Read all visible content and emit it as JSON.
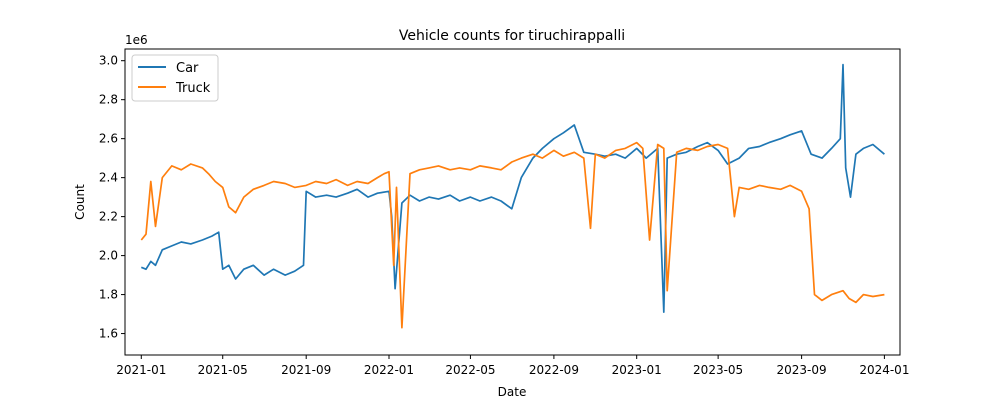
{
  "chart_data": {
    "type": "line",
    "title": "Vehicle counts for tiruchirappalli",
    "xlabel": "Date",
    "ylabel": "Count",
    "y_offset_label": "1e6",
    "y_scale_factor": 1000000,
    "xlim": [
      "2020-12-08",
      "2024-01-24"
    ],
    "ylim": [
      1.49,
      3.06
    ],
    "x_ticks": [
      "2021-01",
      "2021-05",
      "2021-09",
      "2022-01",
      "2022-05",
      "2022-09",
      "2023-01",
      "2023-05",
      "2023-09",
      "2024-01"
    ],
    "y_ticks": [
      "1.6",
      "1.8",
      "2.0",
      "2.2",
      "2.4",
      "2.6",
      "2.8",
      "3.0"
    ],
    "y_tick_values": [
      1.6,
      1.8,
      2.0,
      2.2,
      2.4,
      2.6,
      2.8,
      3.0
    ],
    "grid": false,
    "legend_position": "top-left",
    "series": [
      {
        "name": "Car",
        "color": "#1f77b4",
        "x": [
          "2021-01-01",
          "2021-01-08",
          "2021-01-15",
          "2021-01-22",
          "2021-02-01",
          "2021-02-15",
          "2021-03-01",
          "2021-03-15",
          "2021-04-01",
          "2021-04-15",
          "2021-04-25",
          "2021-05-01",
          "2021-05-10",
          "2021-05-20",
          "2021-06-01",
          "2021-06-15",
          "2021-07-01",
          "2021-07-15",
          "2021-08-01",
          "2021-08-15",
          "2021-08-28",
          "2021-09-01",
          "2021-09-15",
          "2021-10-01",
          "2021-10-15",
          "2021-11-01",
          "2021-11-15",
          "2021-12-01",
          "2021-12-15",
          "2022-01-01",
          "2022-01-05",
          "2022-01-10",
          "2022-01-20",
          "2022-02-01",
          "2022-02-15",
          "2022-03-01",
          "2022-03-15",
          "2022-04-01",
          "2022-04-15",
          "2022-05-01",
          "2022-05-15",
          "2022-06-01",
          "2022-06-15",
          "2022-07-01",
          "2022-07-15",
          "2022-08-01",
          "2022-08-15",
          "2022-09-01",
          "2022-09-15",
          "2022-10-01",
          "2022-10-15",
          "2022-11-01",
          "2022-11-15",
          "2022-12-01",
          "2022-12-15",
          "2023-01-01",
          "2023-01-15",
          "2023-02-01",
          "2023-02-10",
          "2023-02-15",
          "2023-03-01",
          "2023-03-15",
          "2023-04-01",
          "2023-04-15",
          "2023-05-01",
          "2023-05-15",
          "2023-06-01",
          "2023-06-15",
          "2023-07-01",
          "2023-07-15",
          "2023-08-01",
          "2023-08-15",
          "2023-09-01",
          "2023-09-15",
          "2023-10-01",
          "2023-10-15",
          "2023-10-28",
          "2023-11-01",
          "2023-11-05",
          "2023-11-12",
          "2023-11-20",
          "2023-12-01",
          "2023-12-15",
          "2024-01-01"
        ],
        "values": [
          1.94,
          1.93,
          1.97,
          1.95,
          2.03,
          2.05,
          2.07,
          2.06,
          2.08,
          2.1,
          2.12,
          1.93,
          1.95,
          1.88,
          1.93,
          1.95,
          1.9,
          1.93,
          1.9,
          1.92,
          1.95,
          2.33,
          2.3,
          2.31,
          2.3,
          2.32,
          2.34,
          2.3,
          2.32,
          2.33,
          2.2,
          1.83,
          2.27,
          2.31,
          2.28,
          2.3,
          2.29,
          2.31,
          2.28,
          2.3,
          2.28,
          2.3,
          2.28,
          2.24,
          2.4,
          2.5,
          2.55,
          2.6,
          2.63,
          2.67,
          2.53,
          2.52,
          2.51,
          2.52,
          2.5,
          2.55,
          2.5,
          2.55,
          1.71,
          2.5,
          2.52,
          2.53,
          2.56,
          2.58,
          2.54,
          2.47,
          2.5,
          2.55,
          2.56,
          2.58,
          2.6,
          2.62,
          2.64,
          2.52,
          2.5,
          2.55,
          2.6,
          2.98,
          2.45,
          2.3,
          2.52,
          2.55,
          2.57,
          2.52
        ]
      },
      {
        "name": "Truck",
        "color": "#ff7f0e",
        "x": [
          "2021-01-01",
          "2021-01-08",
          "2021-01-15",
          "2021-01-22",
          "2021-02-01",
          "2021-02-15",
          "2021-03-01",
          "2021-03-15",
          "2021-04-01",
          "2021-04-10",
          "2021-04-20",
          "2021-05-01",
          "2021-05-10",
          "2021-05-20",
          "2021-06-01",
          "2021-06-15",
          "2021-07-01",
          "2021-07-15",
          "2021-08-01",
          "2021-08-15",
          "2021-09-01",
          "2021-09-15",
          "2021-10-01",
          "2021-10-15",
          "2021-11-01",
          "2021-11-15",
          "2021-12-01",
          "2021-12-15",
          "2021-12-25",
          "2022-01-01",
          "2022-01-05",
          "2022-01-08",
          "2022-01-12",
          "2022-01-20",
          "2022-02-01",
          "2022-02-15",
          "2022-03-01",
          "2022-03-15",
          "2022-04-01",
          "2022-04-15",
          "2022-05-01",
          "2022-05-15",
          "2022-06-01",
          "2022-06-15",
          "2022-07-01",
          "2022-07-15",
          "2022-08-01",
          "2022-08-15",
          "2022-09-01",
          "2022-09-15",
          "2022-10-01",
          "2022-10-15",
          "2022-10-25",
          "2022-11-01",
          "2022-11-15",
          "2022-12-01",
          "2022-12-15",
          "2023-01-01",
          "2023-01-10",
          "2023-01-20",
          "2023-02-01",
          "2023-02-10",
          "2023-02-15",
          "2023-03-01",
          "2023-03-15",
          "2023-04-01",
          "2023-04-15",
          "2023-05-01",
          "2023-05-15",
          "2023-05-25",
          "2023-06-01",
          "2023-06-15",
          "2023-07-01",
          "2023-07-15",
          "2023-08-01",
          "2023-08-15",
          "2023-09-01",
          "2023-09-12",
          "2023-09-20",
          "2023-10-01",
          "2023-10-15",
          "2023-11-01",
          "2023-11-10",
          "2023-11-20",
          "2023-12-01",
          "2023-12-15",
          "2024-01-01"
        ],
        "values": [
          2.08,
          2.11,
          2.38,
          2.15,
          2.4,
          2.46,
          2.44,
          2.47,
          2.45,
          2.42,
          2.38,
          2.35,
          2.25,
          2.22,
          2.3,
          2.34,
          2.36,
          2.38,
          2.37,
          2.35,
          2.36,
          2.38,
          2.37,
          2.39,
          2.36,
          2.38,
          2.37,
          2.4,
          2.42,
          2.43,
          2.15,
          1.95,
          2.35,
          1.63,
          2.42,
          2.44,
          2.45,
          2.46,
          2.44,
          2.45,
          2.44,
          2.46,
          2.45,
          2.44,
          2.48,
          2.5,
          2.52,
          2.5,
          2.54,
          2.51,
          2.53,
          2.5,
          2.14,
          2.52,
          2.5,
          2.54,
          2.55,
          2.58,
          2.55,
          2.08,
          2.57,
          2.55,
          1.82,
          2.53,
          2.55,
          2.54,
          2.56,
          2.57,
          2.55,
          2.2,
          2.35,
          2.34,
          2.36,
          2.35,
          2.34,
          2.36,
          2.33,
          2.24,
          1.8,
          1.77,
          1.8,
          1.82,
          1.78,
          1.76,
          1.8,
          1.79,
          1.8
        ]
      }
    ]
  }
}
